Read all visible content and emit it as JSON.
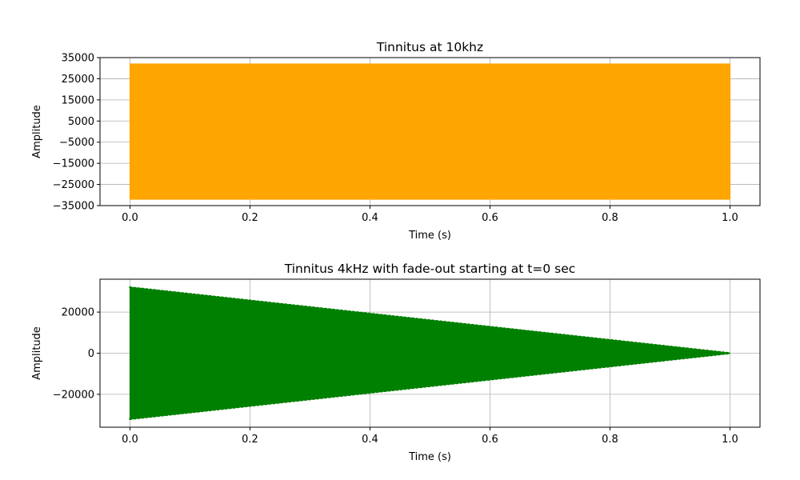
{
  "chart_data": [
    {
      "type": "line",
      "title": "Tinnitus at 10khz",
      "xlabel": "Time (s)",
      "ylabel": "Amplitude",
      "xlim": [
        -0.05,
        1.05
      ],
      "ylim": [
        -35000,
        35000
      ],
      "x_ticks": [
        0.0,
        0.2,
        0.4,
        0.6,
        0.8,
        1.0
      ],
      "x_tick_labels": [
        "0.0",
        "0.2",
        "0.4",
        "0.6",
        "0.8",
        "1.0"
      ],
      "y_ticks": [
        35000,
        25000,
        15000,
        5000,
        -5000,
        -15000,
        -25000,
        -35000
      ],
      "y_tick_labels": [
        "35000",
        "25000",
        "15000",
        "5000",
        "−5000",
        "−15000",
        "−25000",
        "−35000"
      ],
      "grid": true,
      "series": [
        {
          "color": "#ffa500",
          "frequency_hz": 10000,
          "x_start": 0.0,
          "x_end": 1.0,
          "amplitude_start": 32000,
          "amplitude_end": 32000
        }
      ]
    },
    {
      "type": "line",
      "title": "Tinnitus 4kHz with fade-out starting at t=0 sec",
      "xlabel": "Time (s)",
      "ylabel": "Amplitude",
      "xlim": [
        -0.05,
        1.05
      ],
      "ylim": [
        -36000,
        36000
      ],
      "x_ticks": [
        0.0,
        0.2,
        0.4,
        0.6,
        0.8,
        1.0
      ],
      "x_tick_labels": [
        "0.0",
        "0.2",
        "0.4",
        "0.6",
        "0.8",
        "1.0"
      ],
      "y_ticks": [
        20000,
        0,
        -20000
      ],
      "y_tick_labels": [
        "20000",
        "0",
        "−20000"
      ],
      "grid": true,
      "series": [
        {
          "color": "#008000",
          "frequency_hz": 4000,
          "x_start": 0.0,
          "x_end": 1.0,
          "amplitude_start": 32000,
          "amplitude_end": 0
        }
      ]
    }
  ]
}
